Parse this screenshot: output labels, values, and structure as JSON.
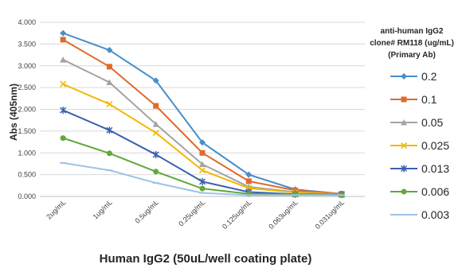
{
  "chart_data": {
    "type": "line",
    "title": "",
    "xlabel": "Human IgG2 (50uL/well coating plate)",
    "ylabel": "Abs (405nm)",
    "ylim": [
      0,
      4
    ],
    "yticks": [
      "0.000",
      "0.500",
      "1.000",
      "1.500",
      "2.000",
      "2.500",
      "3.000",
      "3.500",
      "4.000"
    ],
    "grid": true,
    "legend_position": "right",
    "legend_title": [
      "anti-human IgG2",
      "clone# RM118 (ug/mL)",
      "(Primary Ab)"
    ],
    "categories": [
      "2ug/mL",
      "1ug/mL",
      "0.5ug/mL",
      "0.25ug/mL",
      "0.125ug/mL",
      "0.063ug/mL",
      "0.031ug/mL"
    ],
    "series": [
      {
        "name": "0.2",
        "color": "#4a8ec9",
        "marker": "diamond",
        "values": [
          3.75,
          3.36,
          2.66,
          1.24,
          0.5,
          0.16,
          0.06
        ]
      },
      {
        "name": "0.1",
        "color": "#e06a2b",
        "marker": "square",
        "values": [
          3.6,
          2.98,
          2.08,
          1.0,
          0.35,
          0.14,
          0.06
        ]
      },
      {
        "name": "0.05",
        "color": "#a3a3a3",
        "marker": "triangle",
        "values": [
          3.14,
          2.62,
          1.66,
          0.74,
          0.22,
          0.1,
          0.05
        ]
      },
      {
        "name": "0.025",
        "color": "#f2b800",
        "marker": "x",
        "values": [
          2.58,
          2.12,
          1.46,
          0.6,
          0.19,
          0.09,
          0.05
        ]
      },
      {
        "name": "0.013",
        "color": "#3a5fae",
        "marker": "star",
        "values": [
          1.98,
          1.52,
          0.96,
          0.34,
          0.1,
          0.05,
          0.04
        ]
      },
      {
        "name": "0.006",
        "color": "#62a83a",
        "marker": "circle",
        "values": [
          1.34,
          0.99,
          0.57,
          0.18,
          0.06,
          0.04,
          0.03
        ]
      },
      {
        "name": "0.003",
        "color": "#9dc3e6",
        "marker": "dash",
        "values": [
          0.77,
          0.6,
          0.31,
          0.08,
          0.03,
          0.03,
          0.03
        ]
      }
    ]
  }
}
